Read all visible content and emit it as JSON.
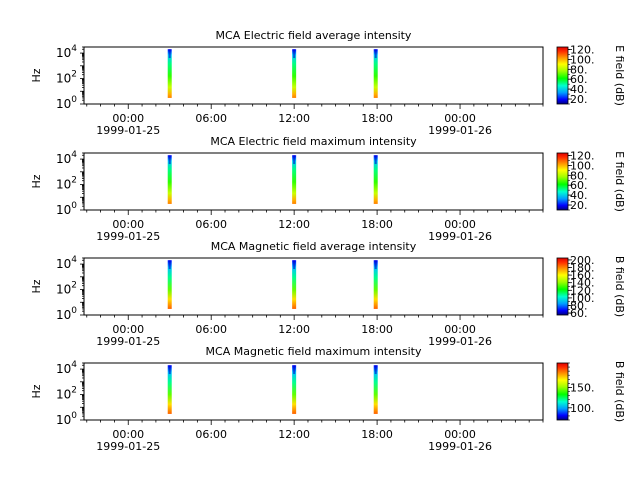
{
  "chart_data": [
    {
      "type": "heatmap",
      "title": "MCA  Electric field average intensity",
      "ylabel": "Hz",
      "y_scale": "log",
      "ylim": [
        1,
        30000
      ],
      "y_tick_values": [
        1,
        100,
        10000
      ],
      "y_tick_labels": [
        {
          "base": "10",
          "exp": "0"
        },
        {
          "base": "10",
          "exp": "2"
        },
        {
          "base": "10",
          "exp": "4"
        }
      ],
      "xlim_hours": [
        -3.2,
        30
      ],
      "x_tick_hours": [
        0,
        6,
        12,
        18,
        24
      ],
      "x_tick_labels": [
        "00:00",
        "06:00",
        "12:00",
        "18:00",
        "00:00"
      ],
      "x_date_labels": [
        {
          "hour": 0,
          "text": "1999-01-25"
        },
        {
          "hour": 24,
          "text": "1999-01-26"
        }
      ],
      "colorbar": {
        "label": "E field (dB)",
        "min": 10,
        "max": 125,
        "ticks": [
          20,
          40,
          60,
          80,
          100,
          120
        ],
        "tick_labels": [
          "20.",
          "40.",
          "60.",
          "80.",
          "100.",
          "120."
        ]
      },
      "bursts": [
        {
          "hour": 3.0,
          "f_low": 3,
          "f_high": 20000
        },
        {
          "hour": 12.0,
          "f_low": 3,
          "f_high": 20000
        },
        {
          "hour": 17.9,
          "f_low": 3,
          "f_high": 20000
        }
      ]
    },
    {
      "type": "heatmap",
      "title": "MCA  Electric field maximum intensity",
      "ylabel": "Hz",
      "y_scale": "log",
      "ylim": [
        1,
        30000
      ],
      "y_tick_values": [
        1,
        100,
        10000
      ],
      "y_tick_labels": [
        {
          "base": "10",
          "exp": "0"
        },
        {
          "base": "10",
          "exp": "2"
        },
        {
          "base": "10",
          "exp": "4"
        }
      ],
      "xlim_hours": [
        -3.2,
        30
      ],
      "x_tick_hours": [
        0,
        6,
        12,
        18,
        24
      ],
      "x_tick_labels": [
        "00:00",
        "06:00",
        "12:00",
        "18:00",
        "00:00"
      ],
      "x_date_labels": [
        {
          "hour": 0,
          "text": "1999-01-25"
        },
        {
          "hour": 24,
          "text": "1999-01-26"
        }
      ],
      "colorbar": {
        "label": "E field (dB)",
        "min": 10,
        "max": 125,
        "ticks": [
          20,
          40,
          60,
          80,
          100,
          120
        ],
        "tick_labels": [
          "20.",
          "40.",
          "60.",
          "80.",
          "100.",
          "120."
        ]
      },
      "bursts": [
        {
          "hour": 3.0,
          "f_low": 3,
          "f_high": 20000
        },
        {
          "hour": 12.0,
          "f_low": 3,
          "f_high": 20000
        },
        {
          "hour": 17.9,
          "f_low": 3,
          "f_high": 20000
        }
      ]
    },
    {
      "type": "heatmap",
      "title": "MCA  Magnetic field average intensity",
      "ylabel": "Hz",
      "y_scale": "log",
      "ylim": [
        1,
        30000
      ],
      "y_tick_values": [
        1,
        100,
        10000
      ],
      "y_tick_labels": [
        {
          "base": "10",
          "exp": "0"
        },
        {
          "base": "10",
          "exp": "2"
        },
        {
          "base": "10",
          "exp": "4"
        }
      ],
      "xlim_hours": [
        -3.2,
        30
      ],
      "x_tick_hours": [
        0,
        6,
        12,
        18,
        24
      ],
      "x_tick_labels": [
        "00:00",
        "06:00",
        "12:00",
        "18:00",
        "00:00"
      ],
      "x_date_labels": [
        {
          "hour": 0,
          "text": "1999-01-25"
        },
        {
          "hour": 24,
          "text": "1999-01-26"
        }
      ],
      "colorbar": {
        "label": "B field (dB)",
        "min": 55,
        "max": 205,
        "ticks": [
          60,
          80,
          100,
          120,
          140,
          160,
          180,
          200
        ],
        "tick_labels": [
          "60.",
          "80.",
          "100.",
          "120.",
          "140.",
          "160.",
          "180.",
          "200."
        ]
      },
      "bursts": [
        {
          "hour": 3.0,
          "f_low": 3,
          "f_high": 20000
        },
        {
          "hour": 12.0,
          "f_low": 3,
          "f_high": 20000
        },
        {
          "hour": 17.9,
          "f_low": 3,
          "f_high": 20000
        }
      ]
    },
    {
      "type": "heatmap",
      "title": "MCA  Magnetic field maximum intensity",
      "ylabel": "Hz",
      "y_scale": "log",
      "ylim": [
        1,
        30000
      ],
      "y_tick_values": [
        1,
        100,
        10000
      ],
      "y_tick_labels": [
        {
          "base": "10",
          "exp": "0"
        },
        {
          "base": "10",
          "exp": "2"
        },
        {
          "base": "10",
          "exp": "4"
        }
      ],
      "xlim_hours": [
        -3.2,
        30
      ],
      "x_tick_hours": [
        0,
        6,
        12,
        18,
        24
      ],
      "x_tick_labels": [
        "00:00",
        "06:00",
        "12:00",
        "18:00",
        "00:00"
      ],
      "x_date_labels": [
        {
          "hour": 0,
          "text": "1999-01-25"
        },
        {
          "hour": 24,
          "text": "1999-01-26"
        }
      ],
      "colorbar": {
        "label": "B field (dB)",
        "min": 70,
        "max": 210,
        "ticks": [
          100,
          150
        ],
        "tick_labels": [
          "100.",
          "150."
        ]
      },
      "bursts": [
        {
          "hour": 3.0,
          "f_low": 3,
          "f_high": 20000
        },
        {
          "hour": 12.0,
          "f_low": 3,
          "f_high": 20000
        },
        {
          "hour": 17.9,
          "f_low": 3,
          "f_high": 20000
        }
      ]
    }
  ]
}
